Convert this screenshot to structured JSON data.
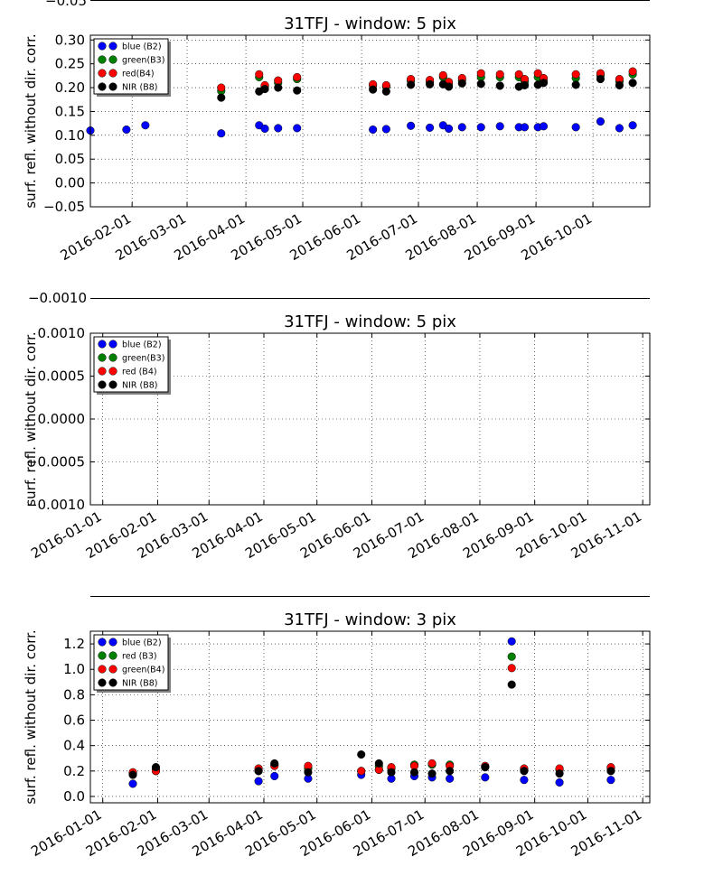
{
  "chart_data": [
    {
      "type": "scatter",
      "title": "31TFJ - window: 5 pix",
      "xlabel": "",
      "ylabel": "surf. refl. without dir. corr.",
      "x_kind": "date",
      "xlim": [
        "2016-01-10",
        "2016-10-31"
      ],
      "ylim": [
        -0.05,
        0.31
      ],
      "partial_top_tick": "−0.05",
      "x_ticks": [
        "2016-02-01",
        "2016-03-01",
        "2016-04-01",
        "2016-05-01",
        "2016-06-01",
        "2016-07-01",
        "2016-08-01",
        "2016-09-01",
        "2016-10-01"
      ],
      "y_ticks": [
        -0.05,
        0.0,
        0.05,
        0.1,
        0.15,
        0.2,
        0.25,
        0.3
      ],
      "y_tick_labels": [
        "−0.05",
        "0.00",
        "0.05",
        "0.10",
        "0.15",
        "0.20",
        "0.25",
        "0.30"
      ],
      "grid": true,
      "legend_position": "top-left",
      "legend": [
        {
          "label": "blue (B2)",
          "color": "#0000ff"
        },
        {
          "label": "green(B3)",
          "color": "#008000"
        },
        {
          "label": "red(B4)",
          "color": "#ff0000"
        },
        {
          "label": "NIR  (B8)",
          "color": "#000000"
        }
      ],
      "series": [
        {
          "name": "blue (B2)",
          "color": "#0000ff",
          "points": [
            [
              "2016-01-10",
              0.11
            ],
            [
              "2016-01-29",
              0.112
            ],
            [
              "2016-02-08",
              0.121
            ],
            [
              "2016-03-19",
              0.104
            ],
            [
              "2016-04-08",
              0.121
            ],
            [
              "2016-04-11",
              0.114
            ],
            [
              "2016-04-18",
              0.115
            ],
            [
              "2016-04-28",
              0.115
            ],
            [
              "2016-06-07",
              0.112
            ],
            [
              "2016-06-14",
              0.113
            ],
            [
              "2016-06-27",
              0.12
            ],
            [
              "2016-07-07",
              0.116
            ],
            [
              "2016-07-14",
              0.121
            ],
            [
              "2016-07-17",
              0.114
            ],
            [
              "2016-07-24",
              0.117
            ],
            [
              "2016-08-03",
              0.117
            ],
            [
              "2016-08-13",
              0.119
            ],
            [
              "2016-08-23",
              0.117
            ],
            [
              "2016-08-26",
              0.117
            ],
            [
              "2016-09-02",
              0.117
            ],
            [
              "2016-09-05",
              0.119
            ],
            [
              "2016-09-22",
              0.117
            ],
            [
              "2016-10-05",
              0.129
            ],
            [
              "2016-10-15",
              0.115
            ],
            [
              "2016-10-22",
              0.121
            ]
          ]
        },
        {
          "name": "green(B3)",
          "color": "#008000",
          "points": [
            [
              "2016-03-19",
              0.193
            ],
            [
              "2016-04-08",
              0.222
            ],
            [
              "2016-04-11",
              0.203
            ],
            [
              "2016-04-18",
              0.21
            ],
            [
              "2016-04-28",
              0.218
            ],
            [
              "2016-06-07",
              0.205
            ],
            [
              "2016-06-14",
              0.202
            ],
            [
              "2016-06-27",
              0.214
            ],
            [
              "2016-07-07",
              0.212
            ],
            [
              "2016-07-14",
              0.222
            ],
            [
              "2016-07-17",
              0.208
            ],
            [
              "2016-07-24",
              0.215
            ],
            [
              "2016-08-03",
              0.222
            ],
            [
              "2016-08-13",
              0.222
            ],
            [
              "2016-08-23",
              0.222
            ],
            [
              "2016-08-26",
              0.212
            ],
            [
              "2016-09-02",
              0.222
            ],
            [
              "2016-09-05",
              0.214
            ],
            [
              "2016-09-22",
              0.22
            ],
            [
              "2016-10-05",
              0.225
            ],
            [
              "2016-10-15",
              0.213
            ],
            [
              "2016-10-22",
              0.228
            ]
          ]
        },
        {
          "name": "red(B4)",
          "color": "#ff0000",
          "points": [
            [
              "2016-03-19",
              0.2
            ],
            [
              "2016-04-08",
              0.228
            ],
            [
              "2016-04-11",
              0.205
            ],
            [
              "2016-04-18",
              0.215
            ],
            [
              "2016-04-28",
              0.222
            ],
            [
              "2016-06-07",
              0.207
            ],
            [
              "2016-06-14",
              0.205
            ],
            [
              "2016-06-27",
              0.218
            ],
            [
              "2016-07-07",
              0.216
            ],
            [
              "2016-07-14",
              0.226
            ],
            [
              "2016-07-17",
              0.212
            ],
            [
              "2016-07-24",
              0.22
            ],
            [
              "2016-08-03",
              0.23
            ],
            [
              "2016-08-13",
              0.228
            ],
            [
              "2016-08-23",
              0.228
            ],
            [
              "2016-08-26",
              0.218
            ],
            [
              "2016-09-02",
              0.23
            ],
            [
              "2016-09-05",
              0.22
            ],
            [
              "2016-09-22",
              0.228
            ],
            [
              "2016-10-05",
              0.23
            ],
            [
              "2016-10-15",
              0.218
            ],
            [
              "2016-10-22",
              0.234
            ]
          ]
        },
        {
          "name": "NIR  (B8)",
          "color": "#000000",
          "points": [
            [
              "2016-03-19",
              0.179
            ],
            [
              "2016-04-08",
              0.192
            ],
            [
              "2016-04-11",
              0.197
            ],
            [
              "2016-04-18",
              0.2
            ],
            [
              "2016-04-28",
              0.194
            ],
            [
              "2016-06-07",
              0.196
            ],
            [
              "2016-06-14",
              0.192
            ],
            [
              "2016-06-27",
              0.206
            ],
            [
              "2016-07-07",
              0.207
            ],
            [
              "2016-07-14",
              0.207
            ],
            [
              "2016-07-17",
              0.202
            ],
            [
              "2016-07-24",
              0.209
            ],
            [
              "2016-08-03",
              0.208
            ],
            [
              "2016-08-13",
              0.204
            ],
            [
              "2016-08-23",
              0.202
            ],
            [
              "2016-08-26",
              0.205
            ],
            [
              "2016-09-02",
              0.206
            ],
            [
              "2016-09-05",
              0.21
            ],
            [
              "2016-09-22",
              0.206
            ],
            [
              "2016-10-05",
              0.218
            ],
            [
              "2016-10-15",
              0.205
            ],
            [
              "2016-10-22",
              0.21
            ]
          ]
        }
      ]
    },
    {
      "type": "scatter",
      "title": "31TFJ - window: 5 pix",
      "xlabel": "",
      "ylabel": "surf. refl. without dir. corr.",
      "x_kind": "date",
      "xlim": [
        "2015-12-25",
        "2016-11-05"
      ],
      "ylim": [
        -0.001,
        0.001
      ],
      "partial_top_tick": "−0.0010",
      "x_ticks": [
        "2016-01-01",
        "2016-02-01",
        "2016-03-01",
        "2016-04-01",
        "2016-05-01",
        "2016-06-01",
        "2016-07-01",
        "2016-08-01",
        "2016-09-01",
        "2016-10-01",
        "2016-11-01"
      ],
      "y_ticks": [
        -0.001,
        -0.0005,
        0.0,
        0.0005,
        0.001
      ],
      "y_tick_labels": [
        "−0.0010",
        "−0.0005",
        "0.0000",
        "0.0005",
        "0.0010"
      ],
      "grid": true,
      "legend_position": "top-left",
      "legend": [
        {
          "label": "blue (B2)",
          "color": "#0000ff"
        },
        {
          "label": "green(B3)",
          "color": "#008000"
        },
        {
          "label": "red  (B4)",
          "color": "#ff0000"
        },
        {
          "label": "NIR  (B8)",
          "color": "#000000"
        }
      ],
      "series": []
    },
    {
      "type": "scatter",
      "title": "31TFJ - window: 3 pix",
      "xlabel": "",
      "ylabel": "surf. refl. without dir. corr.",
      "x_kind": "date",
      "xlim": [
        "2015-12-25",
        "2016-11-05"
      ],
      "ylim": [
        -0.05,
        1.3
      ],
      "x_ticks": [
        "2016-01-01",
        "2016-02-01",
        "2016-03-01",
        "2016-04-01",
        "2016-05-01",
        "2016-06-01",
        "2016-07-01",
        "2016-08-01",
        "2016-09-01",
        "2016-10-01",
        "2016-11-01"
      ],
      "y_ticks": [
        0.0,
        0.2,
        0.4,
        0.6,
        0.8,
        1.0,
        1.2
      ],
      "y_tick_labels": [
        "0.0",
        "0.2",
        "0.4",
        "0.6",
        "0.8",
        "1.0",
        "1.2"
      ],
      "grid": true,
      "legend_position": "top-left",
      "legend": [
        {
          "label": "blue (B2)",
          "color": "#0000ff"
        },
        {
          "label": "red  (B3)",
          "color": "#008000"
        },
        {
          "label": "green(B4)",
          "color": "#ff0000"
        },
        {
          "label": "NIR  (B8)",
          "color": "#000000"
        }
      ],
      "series": [
        {
          "name": "blue (B2)",
          "color": "#0000ff",
          "points": [
            [
              "2016-01-18",
              0.1
            ],
            [
              "2016-01-31",
              0.2
            ],
            [
              "2016-03-29",
              0.12
            ],
            [
              "2016-04-07",
              0.16
            ],
            [
              "2016-04-26",
              0.14
            ],
            [
              "2016-05-26",
              0.17
            ],
            [
              "2016-06-05",
              0.21
            ],
            [
              "2016-06-12",
              0.14
            ],
            [
              "2016-06-25",
              0.16
            ],
            [
              "2016-07-05",
              0.15
            ],
            [
              "2016-07-15",
              0.14
            ],
            [
              "2016-08-04",
              0.15
            ],
            [
              "2016-08-19",
              1.22
            ],
            [
              "2016-08-26",
              0.13
            ],
            [
              "2016-09-15",
              0.11
            ],
            [
              "2016-10-14",
              0.13
            ]
          ]
        },
        {
          "name": "red  (B3)",
          "color": "#008000",
          "points": [
            [
              "2016-01-18",
              0.18
            ],
            [
              "2016-01-31",
              0.21
            ],
            [
              "2016-03-29",
              0.2
            ],
            [
              "2016-04-07",
              0.25
            ],
            [
              "2016-04-26",
              0.22
            ],
            [
              "2016-05-26",
              0.2
            ],
            [
              "2016-06-05",
              0.24
            ],
            [
              "2016-06-12",
              0.22
            ],
            [
              "2016-06-25",
              0.25
            ],
            [
              "2016-07-05",
              0.25
            ],
            [
              "2016-07-15",
              0.25
            ],
            [
              "2016-08-04",
              0.23
            ],
            [
              "2016-08-19",
              1.1
            ],
            [
              "2016-08-26",
              0.21
            ],
            [
              "2016-09-15",
              0.21
            ],
            [
              "2016-10-14",
              0.22
            ]
          ]
        },
        {
          "name": "green(B4)",
          "color": "#ff0000",
          "points": [
            [
              "2016-01-18",
              0.19
            ],
            [
              "2016-01-31",
              0.2
            ],
            [
              "2016-03-29",
              0.22
            ],
            [
              "2016-04-07",
              0.24
            ],
            [
              "2016-04-26",
              0.24
            ],
            [
              "2016-05-26",
              0.2
            ],
            [
              "2016-06-05",
              0.21
            ],
            [
              "2016-06-12",
              0.23
            ],
            [
              "2016-06-25",
              0.24
            ],
            [
              "2016-07-05",
              0.26
            ],
            [
              "2016-07-15",
              0.24
            ],
            [
              "2016-08-04",
              0.24
            ],
            [
              "2016-08-19",
              1.01
            ],
            [
              "2016-08-26",
              0.22
            ],
            [
              "2016-09-15",
              0.22
            ],
            [
              "2016-10-14",
              0.23
            ]
          ]
        },
        {
          "name": "NIR  (B8)",
          "color": "#000000",
          "points": [
            [
              "2016-01-18",
              0.17
            ],
            [
              "2016-01-31",
              0.23
            ],
            [
              "2016-03-29",
              0.2
            ],
            [
              "2016-04-07",
              0.26
            ],
            [
              "2016-04-26",
              0.19
            ],
            [
              "2016-05-26",
              0.33
            ],
            [
              "2016-06-05",
              0.26
            ],
            [
              "2016-06-12",
              0.19
            ],
            [
              "2016-06-25",
              0.19
            ],
            [
              "2016-07-05",
              0.18
            ],
            [
              "2016-07-15",
              0.2
            ],
            [
              "2016-08-04",
              0.23
            ],
            [
              "2016-08-19",
              0.88
            ],
            [
              "2016-08-26",
              0.2
            ],
            [
              "2016-09-15",
              0.18
            ],
            [
              "2016-10-14",
              0.2
            ]
          ]
        }
      ]
    }
  ]
}
